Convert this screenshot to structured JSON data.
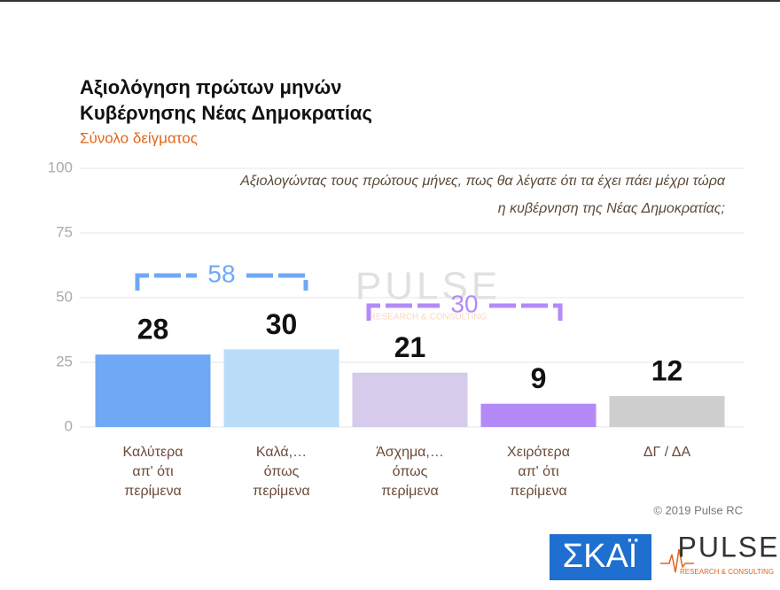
{
  "chart_data": {
    "type": "bar",
    "title": [
      "Αξιολόγηση πρώτων μηνών",
      "Κυβέρνησης Νέας Δημοκρατίας"
    ],
    "subtitle": "Σύνολο δείγματος",
    "question": [
      "Αξιολογώντας τους πρώτους μήνες, πως θα λέγατε ότι τα έχει πάει μέχρι τώρα",
      "η κυβέρνηση της Νέας Δημοκρατίας;"
    ],
    "categories": [
      "Καλύτερα\nαπ' ότι\nπερίμενα",
      "Καλά,…\nόπως\nπερίμενα",
      "Άσχημα,…\nόπως\nπερίμενα",
      "Χειρότερα\nαπ' ότι\nπερίμενα",
      "ΔΓ / ΔΑ"
    ],
    "values": [
      28,
      30,
      21,
      9,
      12
    ],
    "colors": [
      "#6fa8f5",
      "#b9dcf9",
      "#d6cbea",
      "#b48af7",
      "#cfcfcf"
    ],
    "annotations": [
      {
        "label": "58",
        "color": "#6fa8f5"
      },
      {
        "label": "30",
        "color": "#b48af7"
      }
    ],
    "ylim": [
      0,
      100
    ],
    "yticks": [
      0,
      25,
      50,
      75,
      100
    ],
    "grid": true,
    "footer": "© 2019 Pulse RC",
    "logos": {
      "skai": "ΣΚΑΪ",
      "pulse": "PULSE",
      "pulse_sub": "RESEARCH & CONSULTING"
    }
  }
}
